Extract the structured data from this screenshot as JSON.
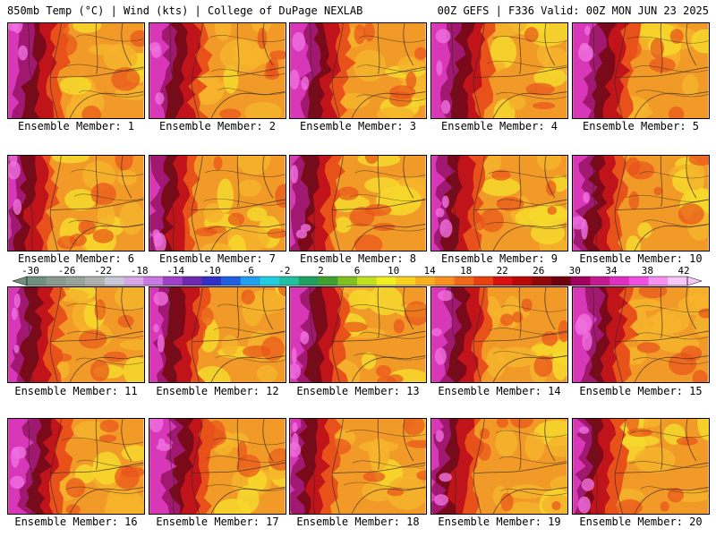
{
  "header": {
    "left": "850mb Temp (°C) | Wind (kts) | College of DuPage NEXLAB",
    "right": "00Z GEFS | F336 Valid: 00Z MON JUN 23 2025"
  },
  "panel_label_prefix": "Ensemble Member:",
  "members": [
    "1",
    "2",
    "3",
    "4",
    "5",
    "6",
    "7",
    "8",
    "9",
    "10",
    "11",
    "12",
    "13",
    "14",
    "15",
    "16",
    "17",
    "18",
    "19",
    "20"
  ],
  "colorbar": {
    "tick_labels": [
      "-30",
      "-26",
      "-22",
      "-18",
      "-14",
      "-10",
      "-6",
      "-2",
      "2",
      "6",
      "10",
      "14",
      "18",
      "22",
      "26",
      "30",
      "34",
      "38",
      "42"
    ],
    "colors": [
      "#6f8f7f",
      "#8a9a8f",
      "#9aa39c",
      "#b0b0b0",
      "#c8c8d8",
      "#d8a8e8",
      "#c878e0",
      "#a040c8",
      "#7028b0",
      "#3030c8",
      "#2060e0",
      "#20a0f0",
      "#20d0e0",
      "#20c0a0",
      "#20a060",
      "#40a030",
      "#80c020",
      "#c0e020",
      "#f0f020",
      "#f8d020",
      "#f8b020",
      "#f89020",
      "#f06818",
      "#e84010",
      "#d81010",
      "#b80808",
      "#900808",
      "#700010",
      "#a00060",
      "#c81890",
      "#e030c0",
      "#f050e0",
      "#f890f0",
      "#f8c8f8"
    ]
  },
  "map_colors": {
    "base": "#f29a28",
    "light": "#f6b42c",
    "yellow": "#f6d82c",
    "red": "#e8521a",
    "darkred": "#c0141a",
    "maroon": "#7a0a1a",
    "purple": "#a01870",
    "magenta": "#d838b8",
    "pink": "#f070e0"
  }
}
